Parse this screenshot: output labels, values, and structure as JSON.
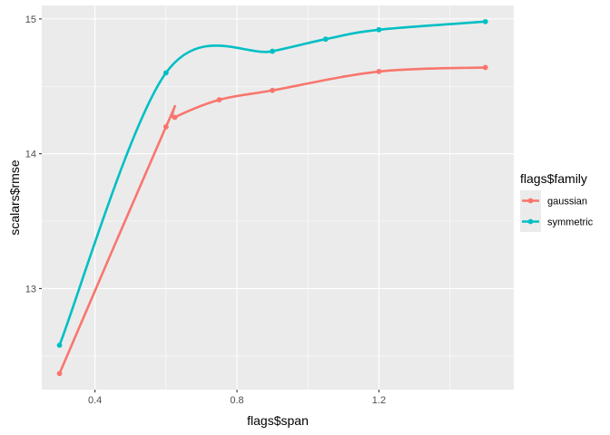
{
  "chart_data": {
    "type": "line",
    "xlabel": "flags$span",
    "ylabel": "scalars$rmse",
    "xlim": [
      0.25,
      1.58
    ],
    "ylim": [
      12.25,
      15.1
    ],
    "x_ticks": [
      0.4,
      0.8,
      1.2
    ],
    "x_tick_labels": [
      "0.4",
      "0.8",
      "1.2"
    ],
    "y_ticks": [
      13,
      14,
      15
    ],
    "y_tick_labels": [
      "13",
      "14",
      "15"
    ],
    "grid": true,
    "background": "#ebebeb",
    "legend": {
      "title": "flags$family",
      "position": "right"
    },
    "series": [
      {
        "name": "gaussian",
        "color": "#f8766d",
        "x": [
          0.3,
          0.6,
          0.625,
          0.75,
          0.9,
          1.2,
          1.5
        ],
        "y": [
          12.37,
          14.2,
          14.27,
          14.4,
          14.47,
          14.61,
          14.64
        ]
      },
      {
        "name": "symmetric",
        "color": "#00bfc4",
        "x": [
          0.3,
          0.6,
          0.9,
          1.05,
          1.2,
          1.5
        ],
        "y": [
          12.58,
          14.6,
          14.76,
          14.85,
          14.92,
          14.98
        ]
      }
    ]
  }
}
